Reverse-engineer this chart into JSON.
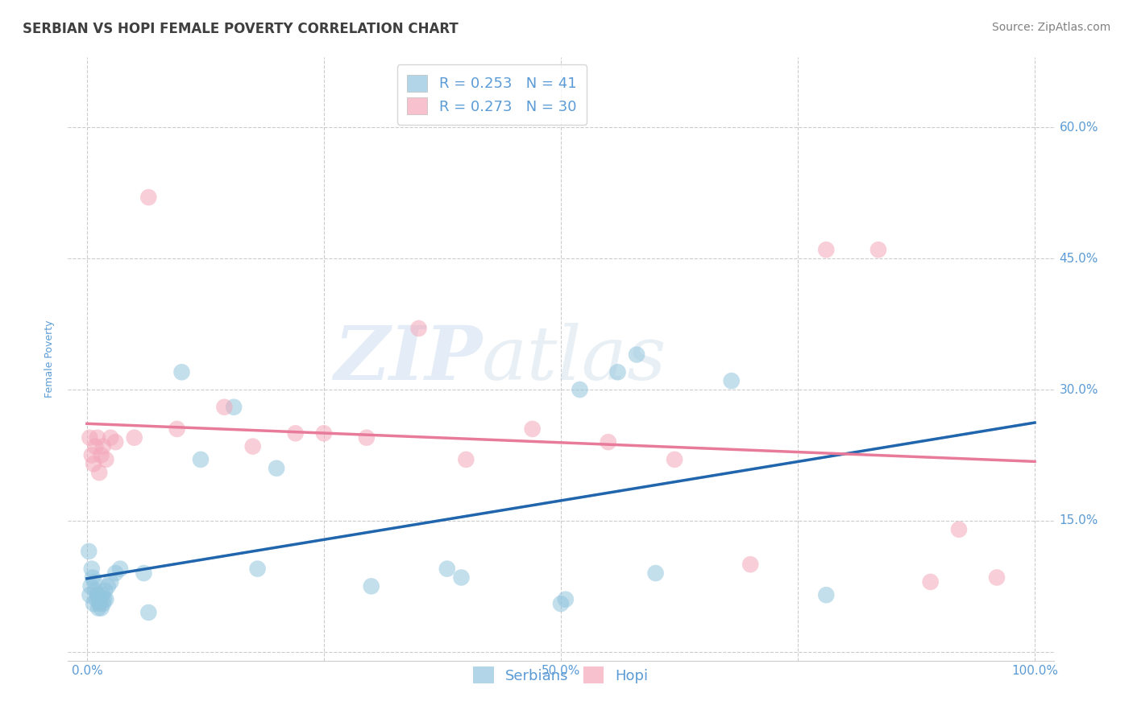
{
  "title": "SERBIAN VS HOPI FEMALE POVERTY CORRELATION CHART",
  "source": "Source: ZipAtlas.com",
  "ylabel": "Female Poverty",
  "watermark": "ZIPatlas",
  "serbian_R": 0.253,
  "serbian_N": 41,
  "hopi_R": 0.273,
  "hopi_N": 30,
  "xlim": [
    -0.02,
    1.02
  ],
  "ylim": [
    -0.01,
    0.68
  ],
  "xticks": [
    0.0,
    0.25,
    0.5,
    0.75,
    1.0
  ],
  "xtick_labels": [
    "0.0%",
    "",
    "50.0%",
    "",
    "100.0%"
  ],
  "ytick_positions": [
    0.0,
    0.15,
    0.3,
    0.45,
    0.6
  ],
  "ytick_labels": [
    "",
    "15.0%",
    "30.0%",
    "45.0%",
    "60.0%"
  ],
  "title_color": "#3f3f3f",
  "axis_label_color": "#5b9bd5",
  "tick_label_color": "#5b9bd5",
  "source_color": "#808080",
  "grid_color": "#cccccc",
  "serbian_color": "#92c5de",
  "hopi_color": "#f4a7b9",
  "serbian_line_color": "#2166ac",
  "serbian_line_dash_color": "#92c5de",
  "hopi_line_color": "#e87a9a",
  "legend_text_color": "#5b9bd5",
  "serbian_x": [
    0.002,
    0.003,
    0.004,
    0.005,
    0.006,
    0.007,
    0.008,
    0.009,
    0.01,
    0.011,
    0.012,
    0.013,
    0.014,
    0.015,
    0.016,
    0.017,
    0.018,
    0.019,
    0.02,
    0.022,
    0.025,
    0.03,
    0.035,
    0.06,
    0.065,
    0.1,
    0.12,
    0.155,
    0.18,
    0.2,
    0.3,
    0.38,
    0.395,
    0.5,
    0.505,
    0.52,
    0.56,
    0.58,
    0.6,
    0.68,
    0.78
  ],
  "serbian_y": [
    0.115,
    0.065,
    0.075,
    0.095,
    0.085,
    0.055,
    0.08,
    0.07,
    0.06,
    0.065,
    0.05,
    0.055,
    0.06,
    0.05,
    0.065,
    0.055,
    0.06,
    0.07,
    0.06,
    0.075,
    0.08,
    0.09,
    0.095,
    0.09,
    0.045,
    0.32,
    0.22,
    0.28,
    0.095,
    0.21,
    0.075,
    0.095,
    0.085,
    0.055,
    0.06,
    0.3,
    0.32,
    0.34,
    0.09,
    0.31,
    0.065
  ],
  "hopi_x": [
    0.003,
    0.005,
    0.007,
    0.009,
    0.011,
    0.013,
    0.015,
    0.017,
    0.02,
    0.025,
    0.03,
    0.05,
    0.065,
    0.095,
    0.145,
    0.175,
    0.22,
    0.25,
    0.295,
    0.35,
    0.4,
    0.47,
    0.55,
    0.62,
    0.7,
    0.78,
    0.835,
    0.89,
    0.92,
    0.96
  ],
  "hopi_y": [
    0.245,
    0.225,
    0.215,
    0.235,
    0.245,
    0.205,
    0.225,
    0.235,
    0.22,
    0.245,
    0.24,
    0.245,
    0.52,
    0.255,
    0.28,
    0.235,
    0.25,
    0.25,
    0.245,
    0.37,
    0.22,
    0.255,
    0.24,
    0.22,
    0.1,
    0.46,
    0.46,
    0.08,
    0.14,
    0.085
  ],
  "background_color": "#ffffff",
  "title_fontsize": 12,
  "axis_label_fontsize": 9,
  "tick_fontsize": 11,
  "legend_fontsize": 13,
  "source_fontsize": 10
}
